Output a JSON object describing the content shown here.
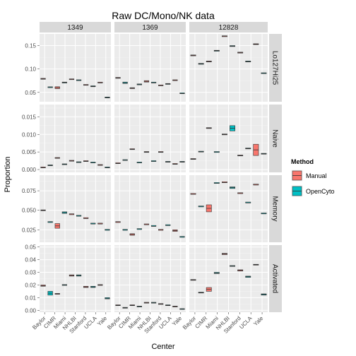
{
  "chart_data": {
    "type": "boxplot",
    "title": "Raw DC/Mono/NK data",
    "xlabel": "Center",
    "ylabel": "Proportion",
    "columns": [
      "1349",
      "1369",
      "12828"
    ],
    "rows": [
      "Lo127Hi25",
      "Naive",
      "Memory",
      "Activated"
    ],
    "categories": [
      "Baylor",
      "CIMR",
      "Miami",
      "NHLBI",
      "Stanford",
      "UCLA",
      "Yale"
    ],
    "legend": {
      "title": "Method",
      "items": [
        {
          "name": "Manual",
          "color": "#f8766d"
        },
        {
          "name": "OpenCyto",
          "color": "#00bfc4"
        }
      ]
    },
    "row_axes": [
      {
        "ylim": [
          0.03,
          0.175
        ],
        "ticks": [
          0.05,
          0.1,
          0.15
        ],
        "tick_labels": [
          "0.05",
          "0.10",
          "0.15"
        ]
      },
      {
        "ylim": [
          -0.0008,
          0.0185
        ],
        "ticks": [
          0.0,
          0.005,
          0.01,
          0.015
        ],
        "tick_labels": [
          "0.000",
          "0.005",
          "0.010",
          "0.015"
        ]
      },
      {
        "ylim": [
          0.009,
          0.095
        ],
        "ticks": [
          0.025,
          0.05,
          0.075
        ],
        "tick_labels": [
          "0.025",
          "0.050",
          "0.075"
        ]
      },
      {
        "ylim": [
          -0.0015,
          0.0515
        ],
        "ticks": [
          0.0,
          0.01,
          0.02,
          0.03,
          0.04,
          0.05
        ],
        "tick_labels": [
          "0.00",
          "0.01",
          "0.02",
          "0.03",
          "0.04",
          "0.05"
        ]
      }
    ],
    "panels": {
      "Lo127Hi25": {
        "1349": [
          [
            0.08,
            0.078
          ],
          [
            0.06,
            0.061
          ],
          [
            0.062,
            0.058
          ],
          [
            0.072,
            0.07
          ],
          [
            0.078,
            0.077
          ],
          [
            0.076,
            0.075
          ],
          [
            0.066,
            0.065
          ],
          [
            0.064,
            0.062
          ],
          [
            0.07,
            0.071
          ],
          [
            0.04,
            0.038
          ]
        ],
        "1369": [
          [
            0.082,
            0.08
          ],
          [
            0.072,
            0.069
          ],
          [
            0.058,
            0.06
          ],
          [
            0.068,
            0.066
          ],
          [
            0.075,
            0.072
          ],
          [
            0.071,
            0.07
          ],
          [
            0.064,
            0.065
          ],
          [
            0.068,
            0.068
          ],
          [
            0.075,
            0.076
          ],
          [
            0.048,
            0.047
          ]
        ],
        "12828": [
          [
            0.13,
            0.128
          ],
          [
            0.112,
            0.11
          ],
          [
            0.115,
            0.117
          ],
          [
            0.14,
            0.138
          ],
          [
            0.169,
            0.17
          ],
          [
            0.15,
            0.148
          ],
          [
            0.136,
            0.134
          ],
          [
            0.115,
            0.117
          ],
          [
            0.154,
            0.152
          ],
          [
            0.091,
            0.09
          ]
        ]
      },
      "Naive": {
        "1349": [
          [
            0.0006,
            0.0005
          ],
          [
            0.0012,
            0.0012
          ],
          [
            0.0033,
            0.0032
          ],
          [
            0.0015,
            0.0015
          ],
          [
            0.0025,
            0.0024
          ],
          [
            0.002,
            0.0021
          ],
          [
            0.0024,
            0.0023
          ],
          [
            0.002,
            0.0018
          ],
          [
            0.0012,
            0.0013
          ],
          [
            0.0006,
            0.0005
          ]
        ],
        "1369": [
          [
            0.0018,
            0.0017
          ],
          [
            0.0027,
            0.0026
          ],
          [
            0.0058,
            0.0057
          ],
          [
            0.0018,
            0.002
          ],
          [
            0.005,
            0.005
          ],
          [
            0.0024,
            0.0022
          ],
          [
            0.0049,
            0.005
          ],
          [
            0.0022,
            0.0022
          ],
          [
            0.0016,
            0.0015
          ],
          [
            0.0022,
            0.0022
          ]
        ],
        "12828": [
          [
            0.003,
            0.003
          ],
          [
            0.005,
            0.0051
          ],
          [
            0.0118,
            0.0118
          ],
          [
            0.005,
            0.0048
          ],
          [
            0.01,
            0.01
          ],
          [
            0.011,
            0.0125
          ],
          [
            0.004,
            0.004
          ],
          [
            0.006,
            0.006
          ],
          [
            0.004,
            0.0072
          ],
          [
            0.0045,
            0.0045
          ]
        ]
      },
      "Memory": {
        "1349": [
          [
            0.05,
            0.05
          ],
          [
            0.035,
            0.034
          ],
          [
            0.033,
            0.027
          ],
          [
            0.048,
            0.046
          ],
          [
            0.045,
            0.044
          ],
          [
            0.043,
            0.042
          ],
          [
            0.04,
            0.039
          ],
          [
            0.033,
            0.032
          ],
          [
            0.033,
            0.032
          ],
          [
            0.025,
            0.024
          ]
        ],
        "1369": [
          [
            0.035,
            0.034
          ],
          [
            0.025,
            0.024
          ],
          [
            0.02,
            0.018
          ],
          [
            0.026,
            0.025
          ],
          [
            0.032,
            0.031
          ],
          [
            0.03,
            0.029
          ],
          [
            0.025,
            0.024
          ],
          [
            0.031,
            0.03
          ],
          [
            0.025,
            0.023
          ],
          [
            0.016,
            0.015
          ]
        ],
        "12828": [
          [
            0.071,
            0.07
          ],
          [
            0.055,
            0.054
          ],
          [
            0.057,
            0.048
          ],
          [
            0.085,
            0.084
          ],
          [
            0.086,
            0.085
          ],
          [
            0.08,
            0.078
          ],
          [
            0.072,
            0.071
          ],
          [
            0.06,
            0.059
          ],
          [
            0.083,
            0.082
          ],
          [
            0.046,
            0.045
          ]
        ]
      },
      "Activated": {
        "1349": [
          [
            0.02,
            0.019
          ],
          [
            0.015,
            0.012
          ],
          [
            0.013,
            0.013
          ],
          [
            0.02,
            0.02
          ],
          [
            0.027,
            0.028
          ],
          [
            0.028,
            0.027
          ],
          [
            0.019,
            0.018
          ],
          [
            0.019,
            0.018
          ],
          [
            0.02,
            0.02
          ],
          [
            0.01,
            0.009
          ]
        ],
        "1369": [
          [
            0.004,
            0.004
          ],
          [
            0.002,
            0.002
          ],
          [
            0.004,
            0.004
          ],
          [
            0.003,
            0.003
          ],
          [
            0.006,
            0.006
          ],
          [
            0.006,
            0.006
          ],
          [
            0.005,
            0.005
          ],
          [
            0.004,
            0.004
          ],
          [
            0.003,
            0.003
          ],
          [
            0.001,
            0.001
          ]
        ],
        "12828": [
          [
            0.024,
            0.024
          ],
          [
            0.014,
            0.014
          ],
          [
            0.018,
            0.015
          ],
          [
            0.03,
            0.029
          ],
          [
            0.045,
            0.044
          ],
          [
            0.035,
            0.035
          ],
          [
            0.032,
            0.031
          ],
          [
            0.026,
            0.027
          ],
          [
            0.036,
            0.036
          ],
          [
            0.013,
            0.012
          ]
        ]
      }
    }
  }
}
